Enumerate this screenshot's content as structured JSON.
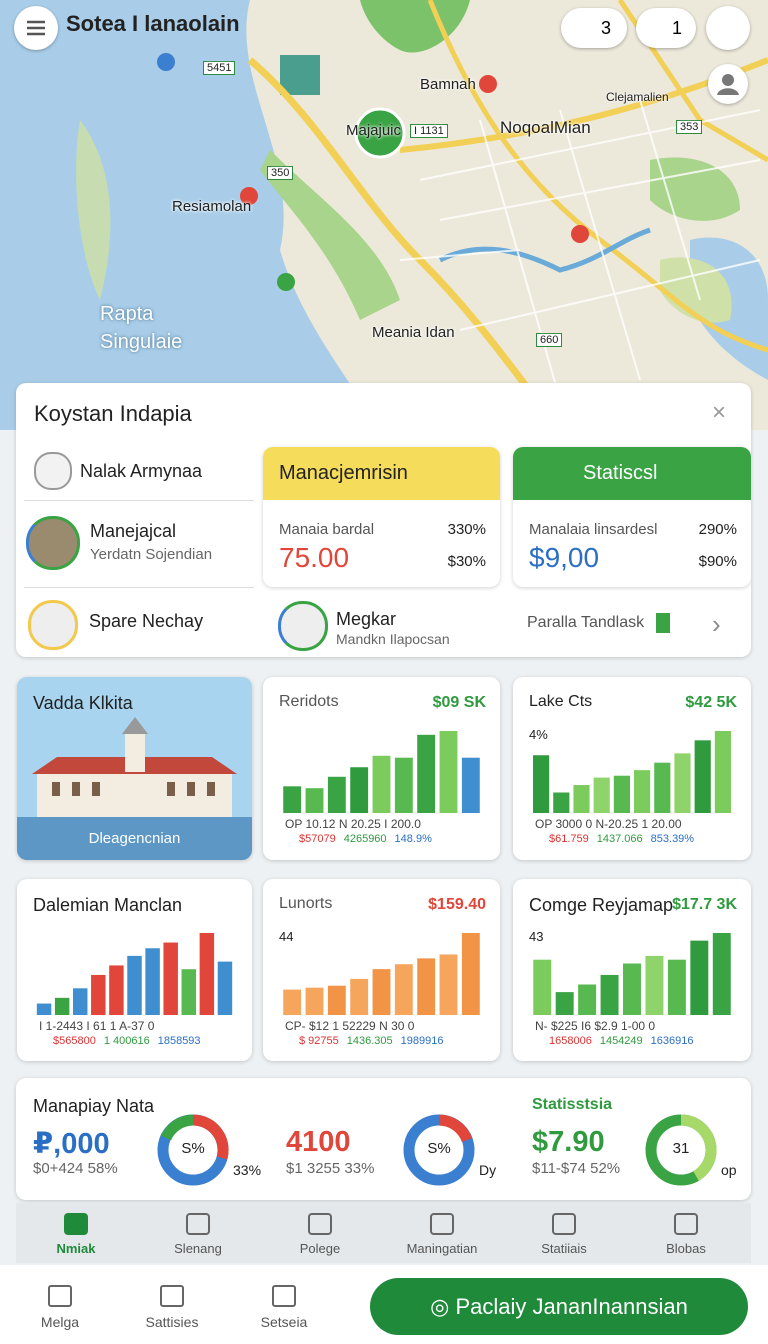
{
  "map": {
    "title": "Sotea I lanaolain",
    "badges": [
      "3",
      "1"
    ],
    "labels": [
      "Bamnah",
      "Majajuic",
      "I 1131",
      "NoqoalMian",
      "Resiamolan",
      "Meania Idan",
      "5451",
      "350",
      "353",
      "660",
      "Rapta",
      "Singulaie",
      "Clejamalien"
    ]
  },
  "panel": {
    "title": "Koystan Indapia",
    "list": [
      {
        "name": "Nalak Armynaa"
      },
      {
        "name": "Manejajcal",
        "sub": "Yerdatn Sojendian"
      },
      {
        "name": "Spare Nechay"
      }
    ],
    "cards": [
      {
        "header": "Manacjemrisin",
        "label": "Manaia bardal",
        "pct": "330%",
        "value": "75.00",
        "sub": "$30%"
      },
      {
        "header": "Statiscsl",
        "label": "Manalaia linsardesl",
        "pct": "290%",
        "value": "$9,00",
        "sub": "$90%"
      }
    ],
    "footer": {
      "name": "Megkar",
      "sub": "Mandkn Ilapocsan",
      "link": "Paralla Tandlask"
    }
  },
  "image_card": {
    "title": "Vadda Klkita",
    "caption": "Dleagencnian"
  },
  "mini_charts": [
    {
      "title": "Reridots",
      "value": "$09 SK",
      "axis": "OP 10.12   N 20.25   I 200.0",
      "subs": [
        "$57079",
        "4265960",
        "148.9%"
      ],
      "values": [
        28,
        26,
        38,
        48,
        60,
        58,
        82,
        86,
        58
      ],
      "colors": [
        "#3aa344",
        "#57b94f",
        "#3aa344",
        "#2f9a3e",
        "#7ccc5d",
        "#57b94f",
        "#3aa344",
        "#7ccc5d",
        "#3f8fd0"
      ]
    },
    {
      "title": "Lake Cts",
      "value": "$42 5K",
      "note": "4%",
      "axis": "OP 3000 0   N-20.25   1 20.00",
      "subs": [
        "$61.759",
        "1437.066",
        "853.39%"
      ],
      "values": [
        62,
        22,
        30,
        38,
        40,
        46,
        54,
        64,
        78,
        88
      ],
      "colors": [
        "#2f9a3e",
        "#3aa344",
        "#7ccc5d",
        "#8fd46a",
        "#57b94f",
        "#7ccc5d",
        "#57b94f",
        "#8fd46a",
        "#2f9a3e",
        "#7ccc5d"
      ]
    },
    {
      "title": "Dalemian Manclan",
      "axis": "I  1-2443   I  61 1   A-37 0",
      "subs": [
        "$565800",
        "1 400616",
        "1858593"
      ],
      "values": [
        12,
        18,
        28,
        42,
        52,
        62,
        70,
        76,
        48,
        86,
        56
      ],
      "colors": [
        "#3f8fd0",
        "#3aa344",
        "#3f8fd0",
        "#e0463a",
        "#e0463a",
        "#3f8fd0",
        "#3f8fd0",
        "#e0463a",
        "#57b94f",
        "#e0463a",
        "#3f8fd0"
      ]
    },
    {
      "title": "Lunorts",
      "value": "$159.40",
      "note": "44",
      "axis": "CP-  $12 1   52229   N  30 0",
      "subs": [
        "$ 92755",
        "1436.305",
        "1989916"
      ],
      "values": [
        26,
        28,
        30,
        37,
        47,
        52,
        58,
        62,
        84
      ],
      "colors": [
        "#f6a55c",
        "#f6a55c",
        "#f29446",
        "#f6a55c",
        "#f29446",
        "#f6a55c",
        "#f29446",
        "#f6a55c",
        "#f29446"
      ]
    },
    {
      "title": "Comge Reyjamap",
      "value": "$17.7 3K",
      "note": "43",
      "axis": "N-  $225   I6  $2.9   1-00 0",
      "subs": [
        "1658006",
        "1454249",
        "1636916"
      ],
      "values": [
        58,
        24,
        32,
        42,
        54,
        62,
        58,
        78,
        86
      ],
      "colors": [
        "#7ccc5d",
        "#3aa344",
        "#57b94f",
        "#3aa344",
        "#57b94f",
        "#8fd46a",
        "#57b94f",
        "#2f9a3e",
        "#3aa344"
      ]
    }
  ],
  "stats": [
    {
      "title": "Manapiay Nata",
      "value": "₽,000",
      "sub": "$0+424 58%",
      "donut": "S%",
      "side": "33%"
    },
    {
      "value": "4100",
      "sub": "$1 3255 33%",
      "donut": "S%",
      "side": "Dy"
    },
    {
      "title": "Statisstsia",
      "value": "$7.90",
      "sub": "$11-$74 52%",
      "donut": "31",
      "side": "op"
    }
  ],
  "tabs": [
    "Nmiak",
    "Slenang",
    "Polege",
    "Maningatian",
    "Statiiais",
    "Blobas"
  ],
  "nav": [
    "Melga",
    "Sattisies",
    "Setseia"
  ],
  "button": "Paclaiy JananInannsian"
}
